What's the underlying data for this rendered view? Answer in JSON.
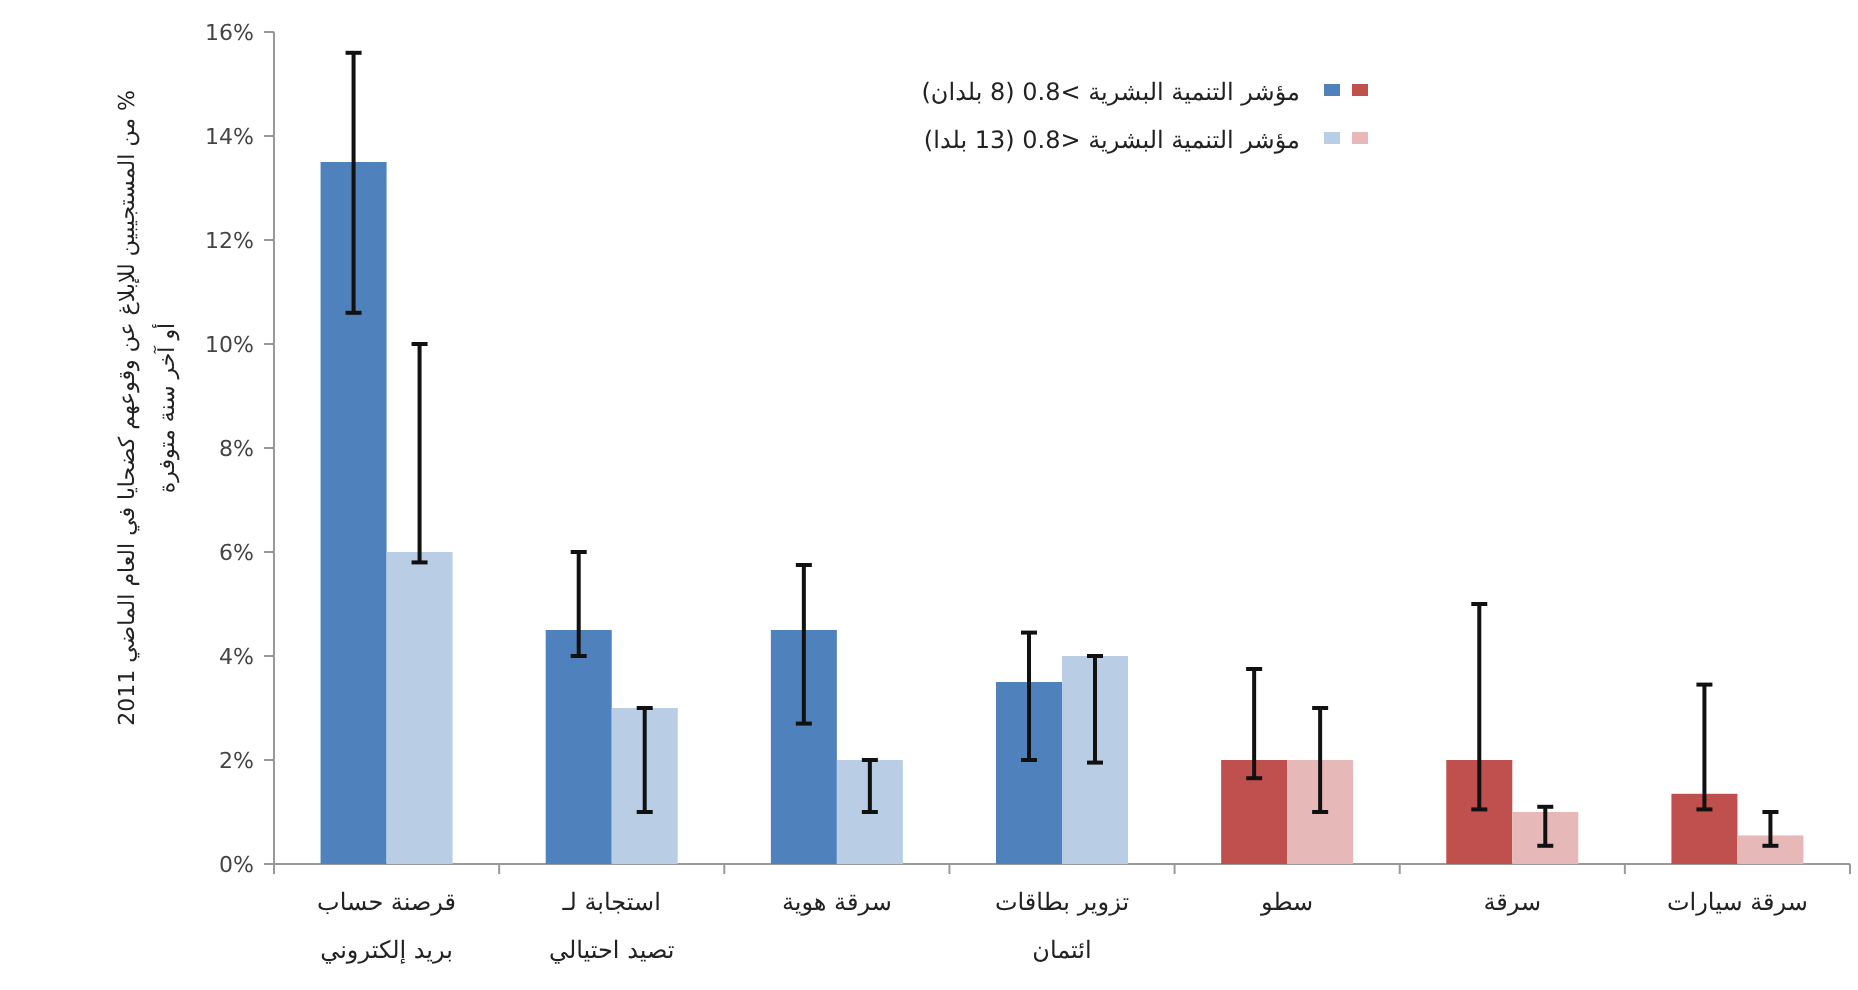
{
  "chart_data": {
    "type": "bar",
    "ylabel": "% من المستجيبين للإبلاغ عن وقوعهم كضحايا في العام الماضي 2011 أو آخر سنة متوفرة",
    "categories": [
      "قرصنة حساب\nبريد إلكتروني",
      "استجابة لـ\nتصيد احتيالي",
      "سرقة هوية",
      "تزوير بطاقات\nائتمان",
      "سطو",
      "سرقة",
      "سرقة سيارات"
    ],
    "series": [
      {
        "name": "مؤشر التنمية البشرية >0.8 (8 بلدان)",
        "colors": [
          "#4f81bd",
          "#4f81bd",
          "#4f81bd",
          "#4f81bd",
          "#c0504d",
          "#c0504d",
          "#c0504d"
        ],
        "values": [
          13.5,
          4.5,
          4.5,
          3.5,
          2.0,
          2.0,
          1.35
        ],
        "errors": [
          [
            10.6,
            15.6
          ],
          [
            4.0,
            6.0
          ],
          [
            2.7,
            5.75
          ],
          [
            2.0,
            4.45
          ],
          [
            1.65,
            3.75
          ],
          [
            1.05,
            5.0
          ],
          [
            1.05,
            3.45
          ]
        ]
      },
      {
        "name": "مؤشر التنمية البشرية <0.8 (13 بلدا)",
        "colors": [
          "#b9cde5",
          "#b9cde5",
          "#b9cde5",
          "#b9cde5",
          "#e6b9b8",
          "#e6b9b8",
          "#e6b9b8"
        ],
        "values": [
          6.0,
          3.0,
          2.0,
          4.0,
          2.0,
          1.0,
          0.55
        ],
        "errors": [
          [
            5.8,
            10.0
          ],
          [
            1.0,
            3.0
          ],
          [
            1.0,
            2.0
          ],
          [
            1.95,
            4.0
          ],
          [
            1.0,
            3.0
          ],
          [
            0.35,
            1.1
          ],
          [
            0.35,
            1.0
          ]
        ]
      }
    ],
    "ylim": [
      0,
      16
    ],
    "yticks": [
      {
        "value": 0,
        "label": "0%"
      },
      {
        "value": 2,
        "label": "2%"
      },
      {
        "value": 4,
        "label": "4%"
      },
      {
        "value": 6,
        "label": "6%"
      },
      {
        "value": 8,
        "label": "8%"
      },
      {
        "value": 10,
        "label": "10%"
      },
      {
        "value": 12,
        "label": "12%"
      },
      {
        "value": 14,
        "label": "14%"
      },
      {
        "value": 16,
        "label": "16%"
      }
    ],
    "legend": "top right",
    "grid": false
  }
}
